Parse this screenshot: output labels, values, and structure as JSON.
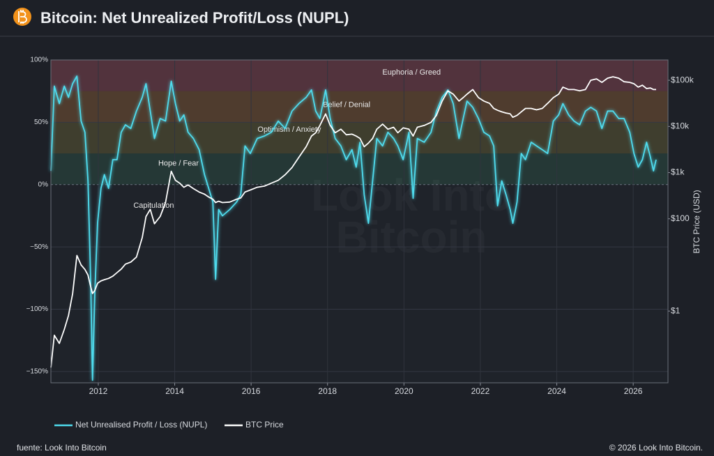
{
  "header": {
    "title": "Bitcoin: Net Unrealized Profit/Loss (NUPL)"
  },
  "chart_data": {
    "type": "line",
    "x": [
      2010.76,
      2010.85,
      2010.98,
      2011.11,
      2011.22,
      2011.33,
      2011.44,
      2011.55,
      2011.65,
      2011.73,
      2011.8,
      2011.85,
      2011.91,
      2011.98,
      2012.07,
      2012.16,
      2012.27,
      2012.38,
      2012.49,
      2012.6,
      2012.71,
      2012.85,
      2013.0,
      2013.15,
      2013.25,
      2013.36,
      2013.47,
      2013.62,
      2013.76,
      2013.91,
      2014.02,
      2014.13,
      2014.24,
      2014.35,
      2014.49,
      2014.64,
      2014.78,
      2014.89,
      2015.0,
      2015.07,
      2015.15,
      2015.25,
      2015.44,
      2015.62,
      2015.73,
      2015.84,
      2015.98,
      2016.16,
      2016.35,
      2016.53,
      2016.71,
      2016.89,
      2017.07,
      2017.25,
      2017.44,
      2017.58,
      2017.69,
      2017.8,
      2017.95,
      2018.07,
      2018.2,
      2018.35,
      2018.49,
      2018.64,
      2018.75,
      2018.85,
      2018.96,
      2019.07,
      2019.18,
      2019.29,
      2019.44,
      2019.58,
      2019.73,
      2019.84,
      2019.98,
      2020.13,
      2020.24,
      2020.35,
      2020.53,
      2020.71,
      2020.85,
      2021.0,
      2021.15,
      2021.29,
      2021.44,
      2021.55,
      2021.65,
      2021.8,
      2021.95,
      2022.09,
      2022.24,
      2022.35,
      2022.45,
      2022.56,
      2022.67,
      2022.78,
      2022.85,
      2022.96,
      2023.07,
      2023.18,
      2023.33,
      2023.47,
      2023.62,
      2023.76,
      2023.91,
      2024.05,
      2024.16,
      2024.31,
      2024.45,
      2024.6,
      2024.75,
      2024.89,
      2025.04,
      2025.18,
      2025.33,
      2025.47,
      2025.62,
      2025.76,
      2025.91,
      2026.02,
      2026.13,
      2026.24,
      2026.35,
      2026.45,
      2026.53,
      2026.6
    ],
    "xlim": [
      2010.76,
      2026.91
    ],
    "xticks": [
      2012,
      2014,
      2016,
      2018,
      2020,
      2022,
      2024,
      2026
    ],
    "ylim": [
      -159,
      100
    ],
    "yticks": [
      {
        "value": 100,
        "label": "100%"
      },
      {
        "value": 50,
        "label": "50%"
      },
      {
        "value": 0,
        "label": "0%"
      },
      {
        "value": -50,
        "label": "−50%"
      },
      {
        "value": -100,
        "label": "−100%"
      },
      {
        "value": -150,
        "label": "−150%"
      }
    ],
    "y2lim": [
      0.028,
      275000
    ],
    "y2ticks": [
      {
        "value": 100000,
        "label": "$100k"
      },
      {
        "value": 10000,
        "label": "$10k"
      },
      {
        "value": 1000,
        "label": "$1k"
      },
      {
        "value": 100,
        "label": "$100"
      },
      {
        "value": 1,
        "label": "$1"
      }
    ],
    "y2_scale": "log",
    "y2_label": "BTC Price (USD)",
    "grid": true,
    "watermark": [
      "Look Into",
      "Bitcoin"
    ],
    "zones": [
      {
        "label": "Euphoria / Greed",
        "range": [
          75,
          100
        ],
        "color": "rgba(196,92,110,0.32)"
      },
      {
        "label": "Belief / Denial",
        "range": [
          50,
          75
        ],
        "color": "rgba(196,126,64,0.30)"
      },
      {
        "label": "Optimism / Anxiety",
        "range": [
          25,
          50
        ],
        "color": "rgba(170,158,70,0.24)"
      },
      {
        "label": "Hope / Fear",
        "range": [
          0,
          25
        ],
        "color": "rgba(64,132,104,0.24)"
      },
      {
        "label": "Capitulation",
        "range": [
          -159,
          0
        ],
        "color": "rgba(40,44,52,0.25)"
      }
    ],
    "series": [
      {
        "name": "Net Unrealised Profit / Loss (NUPL)",
        "color": "#4fdcee",
        "values": [
          11,
          79,
          65,
          79,
          70,
          81,
          87,
          51,
          42,
          3,
          -76,
          -157,
          -87,
          -31,
          -3,
          8,
          -3,
          20,
          20,
          42,
          48,
          45,
          59,
          70,
          81,
          59,
          37,
          53,
          51,
          83,
          65,
          51,
          56,
          42,
          37,
          28,
          8,
          -3,
          -14,
          -76,
          -20,
          -25,
          -20,
          -14,
          -8,
          31,
          25,
          37,
          39,
          42,
          51,
          45,
          59,
          65,
          70,
          76,
          59,
          53,
          76,
          53,
          37,
          31,
          20,
          28,
          14,
          34,
          -8,
          -31,
          3,
          37,
          31,
          42,
          37,
          31,
          20,
          42,
          -11,
          37,
          34,
          42,
          59,
          70,
          76,
          65,
          37,
          53,
          67,
          62,
          53,
          42,
          39,
          31,
          -17,
          3,
          -8,
          -20,
          -31,
          -14,
          25,
          20,
          34,
          31,
          28,
          25,
          51,
          56,
          65,
          56,
          51,
          48,
          59,
          62,
          59,
          45,
          59,
          59,
          53,
          53,
          42,
          25,
          14,
          20,
          34,
          22,
          11,
          20
        ]
      },
      {
        "name": "BTC Price",
        "color": "#ffffff",
        "axis": "y2",
        "values": [
          0.06,
          0.3,
          0.2,
          0.4,
          0.8,
          2.4,
          16,
          10,
          8,
          6,
          3.4,
          2.4,
          2.8,
          4,
          4.5,
          4.8,
          5.1,
          5.7,
          6.8,
          8.1,
          10.4,
          11.5,
          14.8,
          39,
          112,
          160,
          78,
          112,
          224,
          1070,
          680,
          590,
          480,
          540,
          450,
          380,
          340,
          295,
          265,
          224,
          240,
          224,
          230,
          265,
          282,
          380,
          420,
          480,
          510,
          590,
          680,
          900,
          1290,
          2140,
          3630,
          6200,
          7300,
          10500,
          18700,
          10500,
          7300,
          8700,
          6600,
          6800,
          6200,
          5500,
          3630,
          4360,
          5500,
          8700,
          11200,
          8700,
          9600,
          7300,
          9300,
          8700,
          6200,
          9600,
          10500,
          12300,
          17400,
          35500,
          59000,
          50000,
          35500,
          42000,
          50000,
          63000,
          42000,
          35500,
          31600,
          24500,
          22300,
          20700,
          19500,
          18700,
          15800,
          17400,
          20700,
          24500,
          24500,
          22900,
          24500,
          31600,
          42000,
          50000,
          71000,
          63000,
          63000,
          59000,
          63000,
          100000,
          107000,
          90000,
          111000,
          119000,
          111000,
          93000,
          90000,
          84000,
          71000,
          78000,
          66000,
          68000,
          63000,
          63000
        ]
      }
    ]
  },
  "footer": {
    "source": "fuente: Look Into Bitcoin",
    "copyright": "© 2026 Look Into Bitcoin."
  }
}
